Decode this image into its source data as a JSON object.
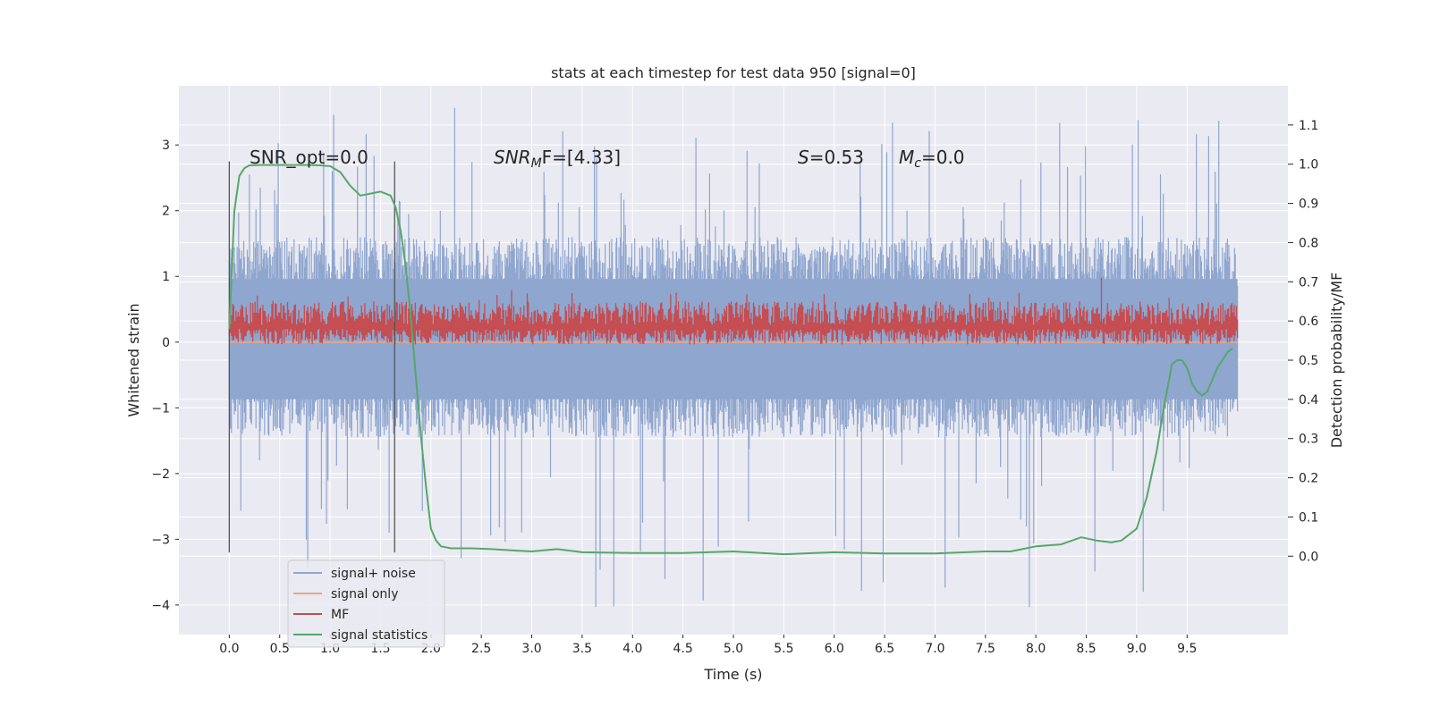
{
  "chart_data": {
    "type": "line",
    "title": "stats at each timestep for test data 950 [signal=0]",
    "xlabel": "Time (s)",
    "ylabel": "Whitened strain",
    "y2label": "Detection probability/MF",
    "xlim": [
      -0.5,
      10.5
    ],
    "ylim": [
      -4.45,
      3.9
    ],
    "y2lim": [
      -0.2,
      1.2
    ],
    "xticks": [
      "0.0",
      "0.5",
      "1.0",
      "1.5",
      "2.0",
      "2.5",
      "3.0",
      "3.5",
      "4.0",
      "4.5",
      "5.0",
      "5.5",
      "6.0",
      "6.5",
      "7.0",
      "7.5",
      "8.0",
      "8.5",
      "9.0",
      "9.5"
    ],
    "xtick_values": [
      0.0,
      0.5,
      1.0,
      1.5,
      2.0,
      2.5,
      3.0,
      3.5,
      4.0,
      4.5,
      5.0,
      5.5,
      6.0,
      6.5,
      7.0,
      7.5,
      8.0,
      8.5,
      9.0,
      9.5
    ],
    "yticks": [
      "3",
      "2",
      "1",
      "0",
      "−1",
      "−2",
      "−3",
      "−4"
    ],
    "ytick_values": [
      3,
      2,
      1,
      0,
      -1,
      -2,
      -3,
      -4
    ],
    "y2ticks": [
      "1.1",
      "1.0",
      "0.9",
      "0.8",
      "0.7",
      "0.6",
      "0.5",
      "0.4",
      "0.3",
      "0.2",
      "0.1",
      "0.0"
    ],
    "y2tick_values": [
      1.1,
      1.0,
      0.9,
      0.8,
      0.7,
      0.6,
      0.5,
      0.4,
      0.3,
      0.2,
      0.1,
      0.0
    ],
    "grid": true,
    "legend_placement": "lower-left",
    "annotations": {
      "snr_opt": "SNR_opt=0.0",
      "snr_mf_main": "SNR",
      "snr_mf_sub": "M",
      "snr_mf_rest": "F=[4.33]",
      "s_main": "S",
      "s_rest": "=0.53",
      "mc_main": "M",
      "mc_sub": "c",
      "mc_rest": "=0.0"
    },
    "vlines": [
      0.0,
      1.64
    ],
    "vline_range": [
      -3.2,
      2.75
    ],
    "series": [
      {
        "name": "signal+ noise",
        "color": "#8fa6cf",
        "x_range": [
          0.0,
          10.0
        ],
        "envelope_upper": 1.6,
        "envelope_lower": -1.45,
        "spike_max": 3.6,
        "spike_min": -4.05
      },
      {
        "name": "signal only",
        "color": "#e8a58a",
        "x": [
          0.0,
          10.0
        ],
        "y": [
          0.0,
          0.0
        ]
      },
      {
        "name": "MF",
        "color": "#c44e52",
        "axis": "right",
        "x_range": [
          0.0,
          10.0
        ],
        "band_upper": 0.65,
        "band_lower": 0.54,
        "baseline": 0.58,
        "spike_max": 0.71
      },
      {
        "name": "signal statistics",
        "color": "#55a868",
        "axis": "right",
        "x": [
          0.0,
          0.05,
          0.1,
          0.15,
          0.2,
          0.3,
          0.4,
          0.5,
          0.6,
          0.7,
          0.8,
          0.9,
          1.0,
          1.1,
          1.2,
          1.3,
          1.4,
          1.5,
          1.6,
          1.65,
          1.7,
          1.75,
          1.8,
          1.85,
          1.9,
          1.95,
          2.0,
          2.05,
          2.1,
          2.2,
          2.3,
          2.4,
          2.6,
          2.8,
          3.0,
          3.25,
          3.5,
          4.0,
          4.5,
          5.0,
          5.5,
          6.0,
          6.5,
          7.0,
          7.5,
          7.75,
          8.0,
          8.25,
          8.45,
          8.6,
          8.75,
          8.85,
          9.0,
          9.1,
          9.2,
          9.25,
          9.3,
          9.35,
          9.4,
          9.45,
          9.5,
          9.55,
          9.6,
          9.65,
          9.7,
          9.75,
          9.8,
          9.85,
          9.9,
          9.95
        ],
        "y": [
          0.58,
          0.88,
          0.97,
          0.99,
          0.997,
          0.998,
          0.998,
          0.998,
          0.998,
          0.998,
          0.998,
          0.997,
          0.995,
          0.98,
          0.945,
          0.92,
          0.925,
          0.93,
          0.92,
          0.89,
          0.83,
          0.74,
          0.61,
          0.46,
          0.31,
          0.18,
          0.07,
          0.04,
          0.025,
          0.02,
          0.02,
          0.02,
          0.018,
          0.015,
          0.012,
          0.018,
          0.01,
          0.008,
          0.008,
          0.012,
          0.005,
          0.01,
          0.007,
          0.007,
          0.012,
          0.012,
          0.025,
          0.03,
          0.048,
          0.04,
          0.035,
          0.04,
          0.07,
          0.15,
          0.27,
          0.35,
          0.42,
          0.49,
          0.5,
          0.5,
          0.48,
          0.44,
          0.42,
          0.41,
          0.42,
          0.45,
          0.48,
          0.5,
          0.52,
          0.53
        ]
      }
    ]
  }
}
